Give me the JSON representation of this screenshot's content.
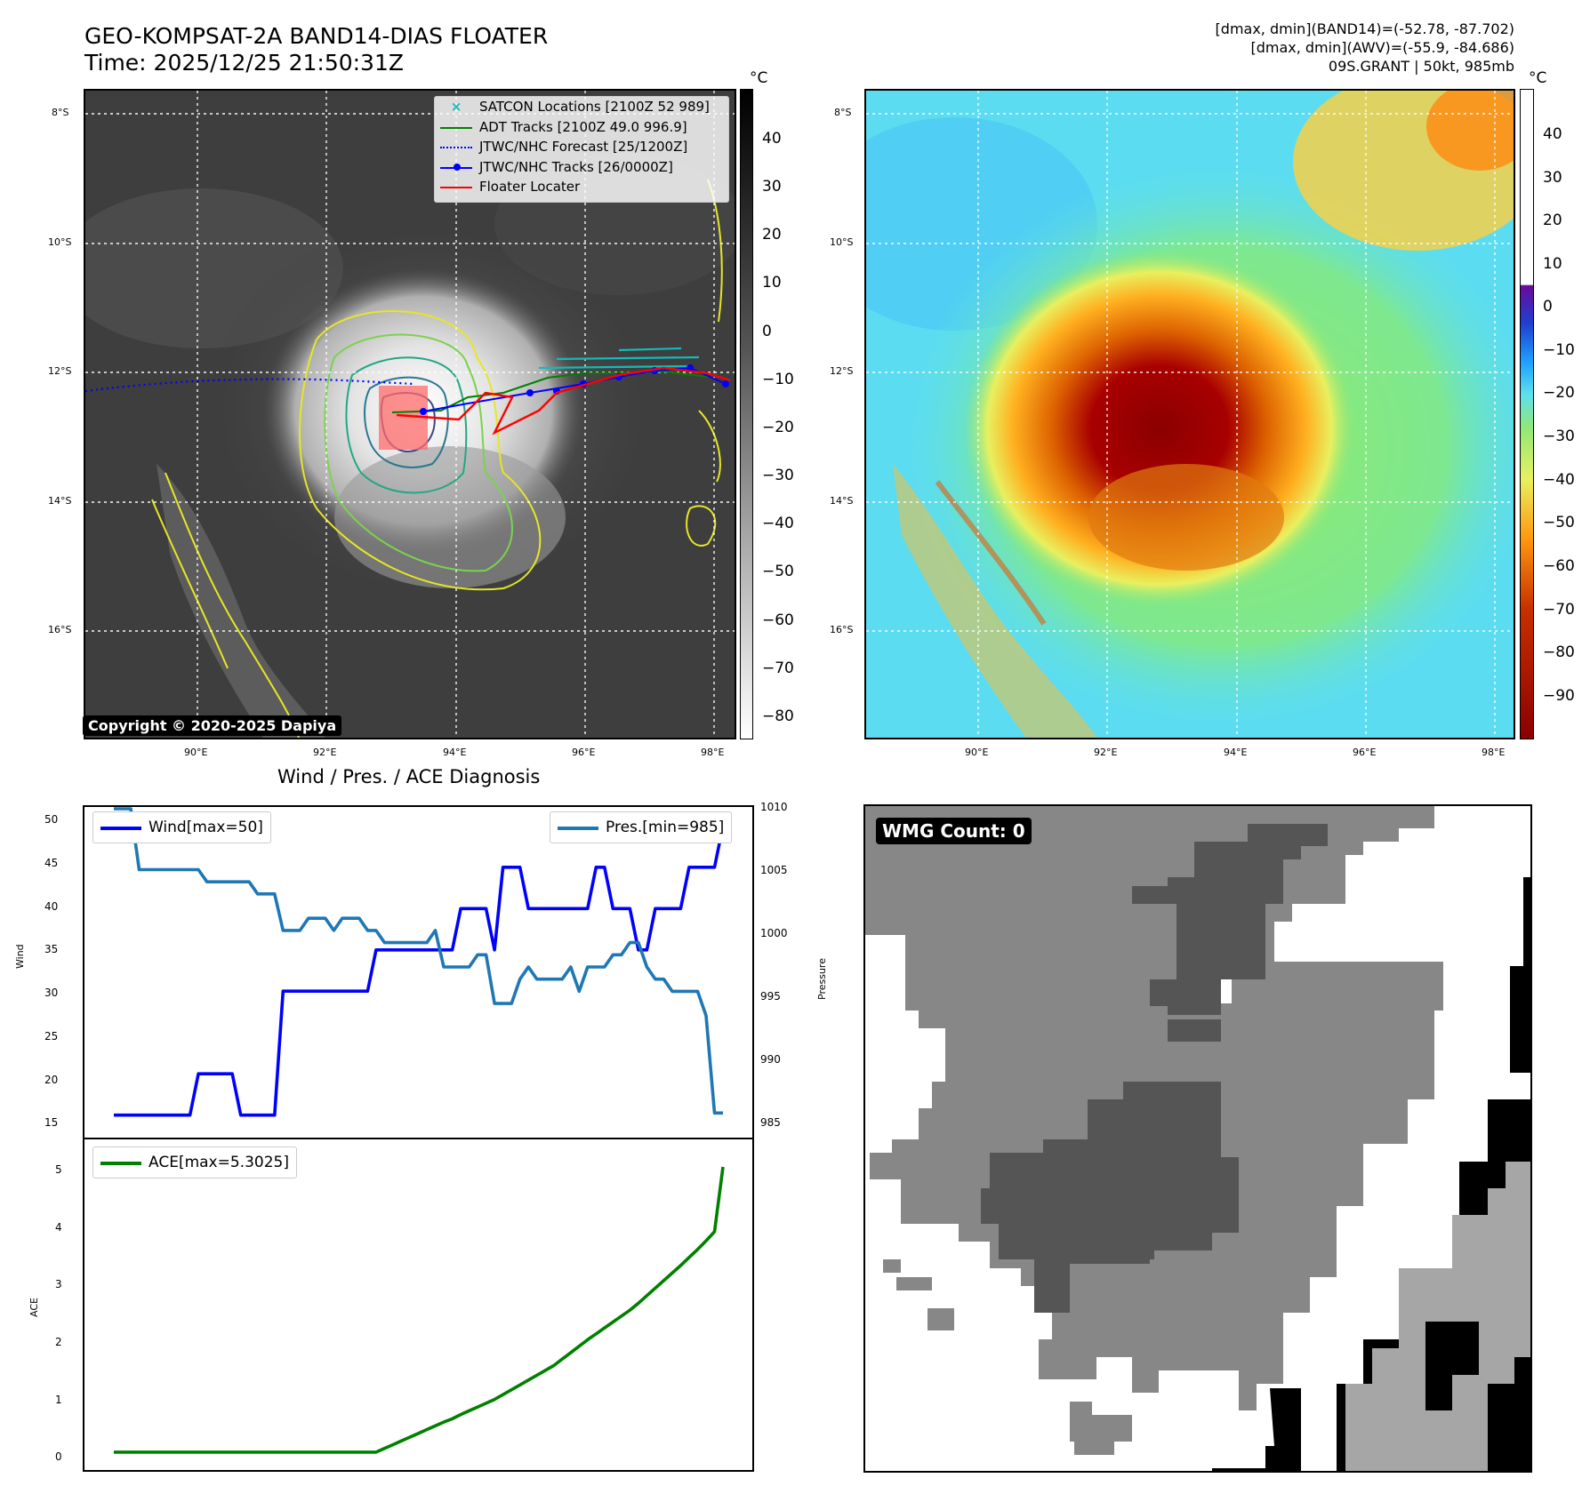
{
  "header": {
    "title_line1": "GEO-KOMPSAT-2A BAND14-DIAS FLOATER",
    "title_line2": "Time: 2025/12/25 21:50:31Z",
    "info_line1": "[dmax, dmin](BAND14)=(-52.78, -87.702)",
    "info_line2": "[dmax, dmin](AWV)=(-55.9, -84.686)",
    "info_line3": "09S.GRANT | 50kt, 985mb"
  },
  "map_common": {
    "lat_labels": [
      "8°S",
      "10°S",
      "12°S",
      "14°S",
      "16°S"
    ],
    "lon_labels": [
      "90°E",
      "92°E",
      "94°E",
      "96°E",
      "98°E"
    ]
  },
  "ir_panel": {
    "colorbar_unit": "°C",
    "colorbar_ticks": [
      "40",
      "30",
      "20",
      "10",
      "0",
      "−10",
      "−20",
      "−30",
      "−40",
      "−50",
      "−60",
      "−70",
      "−80"
    ],
    "legend": [
      {
        "label": "SATCON Locations [2100Z 52 989]",
        "color": "#11bbbb",
        "symbol": "x"
      },
      {
        "label": "ADT Tracks [2100Z 49.0 996.9]",
        "color": "#008000",
        "symbol": "line"
      },
      {
        "label": "JTWC/NHC Forecast [25/1200Z]",
        "color": "#0000ff",
        "symbol": "dotted"
      },
      {
        "label": "JTWC/NHC Tracks [26/0000Z]",
        "color": "#0000ff",
        "symbol": "line-dot"
      },
      {
        "label": "Floater Locater",
        "color": "#ff0000",
        "symbol": "line"
      }
    ],
    "copyright": "Copyright © 2020-2025 Dapiya"
  },
  "awv_panel": {
    "colorbar_unit": "°C",
    "colorbar_ticks": [
      "40",
      "30",
      "20",
      "10",
      "0",
      "−10",
      "−20",
      "−30",
      "−40",
      "−50",
      "−60",
      "−70",
      "−80",
      "−90"
    ]
  },
  "diag_panel": {
    "title": "Wind / Pres. / ACE Diagnosis",
    "wind_axis_label": "Wind",
    "pressure_axis_label": "Pressure",
    "ace_axis_label": "ACE",
    "wind_legend": "Wind[max=50]",
    "pres_legend": "Pres.[min=985]",
    "ace_legend": "ACE[max=5.3025]",
    "wind_ticks": [
      "50",
      "45",
      "40",
      "35",
      "30",
      "25",
      "20",
      "15"
    ],
    "pres_ticks": [
      "1010",
      "1005",
      "1000",
      "995",
      "990",
      "985"
    ],
    "ace_ticks": [
      "5",
      "4",
      "3",
      "2",
      "1",
      "0"
    ]
  },
  "wmg_panel": {
    "label": "WMG Count: 0"
  },
  "chart_data": [
    {
      "type": "line",
      "title": "Wind / Pres. / ACE Diagnosis",
      "ylabel": "Wind",
      "ylabel_right": "Pressure",
      "ylim": [
        14,
        51
      ],
      "ylim_right": [
        984,
        1010
      ],
      "x": [
        0,
        1,
        2,
        3,
        4,
        5,
        6,
        7,
        8,
        9,
        10,
        11,
        12,
        13,
        14,
        15,
        16,
        17,
        18,
        19,
        20,
        21,
        22,
        23,
        24,
        25,
        26,
        27,
        28,
        29,
        30,
        31,
        32,
        33,
        34,
        35,
        36,
        37,
        38,
        39,
        40,
        41,
        42,
        43,
        44,
        45,
        46,
        47,
        48,
        49,
        50,
        51,
        52,
        53,
        54,
        55,
        56,
        57,
        58,
        59,
        60,
        61,
        62,
        63,
        64,
        65,
        66,
        67,
        68,
        69,
        70,
        71,
        72
      ],
      "series": [
        {
          "name": "Wind[max=50]",
          "axis": "left",
          "color": "#0000ff",
          "values": [
            15,
            15,
            15,
            15,
            15,
            15,
            15,
            15,
            15,
            15,
            20,
            20,
            20,
            20,
            20,
            15,
            15,
            15,
            15,
            15,
            30,
            30,
            30,
            30,
            30,
            30,
            30,
            30,
            30,
            30,
            30,
            35,
            35,
            35,
            35,
            35,
            35,
            35,
            35,
            35,
            35,
            40,
            40,
            40,
            40,
            35,
            45,
            45,
            45,
            40,
            40,
            40,
            40,
            40,
            40,
            40,
            40,
            45,
            45,
            40,
            40,
            40,
            35,
            35,
            40,
            40,
            40,
            40,
            45,
            45,
            45,
            45,
            50
          ]
        },
        {
          "name": "Pres.[min=985]",
          "axis": "right",
          "color": "#1f77b4",
          "values": [
            1010,
            1010,
            1010,
            1005,
            1005,
            1005,
            1005,
            1005,
            1005,
            1005,
            1005,
            1004,
            1004,
            1004,
            1004,
            1004,
            1004,
            1003,
            1003,
            1003,
            1000,
            1000,
            1000,
            1001,
            1001,
            1001,
            1000,
            1001,
            1001,
            1001,
            1000,
            1000,
            999,
            999,
            999,
            999,
            999,
            999,
            1000,
            997,
            997,
            997,
            997,
            998,
            998,
            994,
            994,
            994,
            996,
            997,
            996,
            996,
            996,
            996,
            997,
            995,
            997,
            997,
            997,
            998,
            998,
            999,
            999,
            997,
            996,
            996,
            995,
            995,
            995,
            995,
            993,
            985,
            985
          ]
        },
        {
          "name": "ACE[max=5.3025]",
          "axis": "ace",
          "color": "#008000",
          "ylim": [
            -0.1,
            5.6
          ],
          "values": [
            0,
            0,
            0,
            0,
            0,
            0,
            0,
            0,
            0,
            0,
            0,
            0,
            0,
            0,
            0,
            0,
            0,
            0,
            0,
            0,
            0,
            0,
            0,
            0,
            0,
            0,
            0,
            0,
            0,
            0,
            0,
            0,
            0.07,
            0.14,
            0.21,
            0.28,
            0.35,
            0.42,
            0.49,
            0.56,
            0.62,
            0.7,
            0.77,
            0.84,
            0.91,
            0.98,
            1.07,
            1.16,
            1.25,
            1.34,
            1.43,
            1.52,
            1.61,
            1.73,
            1.85,
            1.97,
            2.09,
            2.2,
            2.31,
            2.42,
            2.53,
            2.64,
            2.77,
            2.91,
            3.05,
            3.19,
            3.33,
            3.47,
            3.62,
            3.77,
            3.93,
            4.1,
            5.3025
          ]
        }
      ]
    }
  ]
}
